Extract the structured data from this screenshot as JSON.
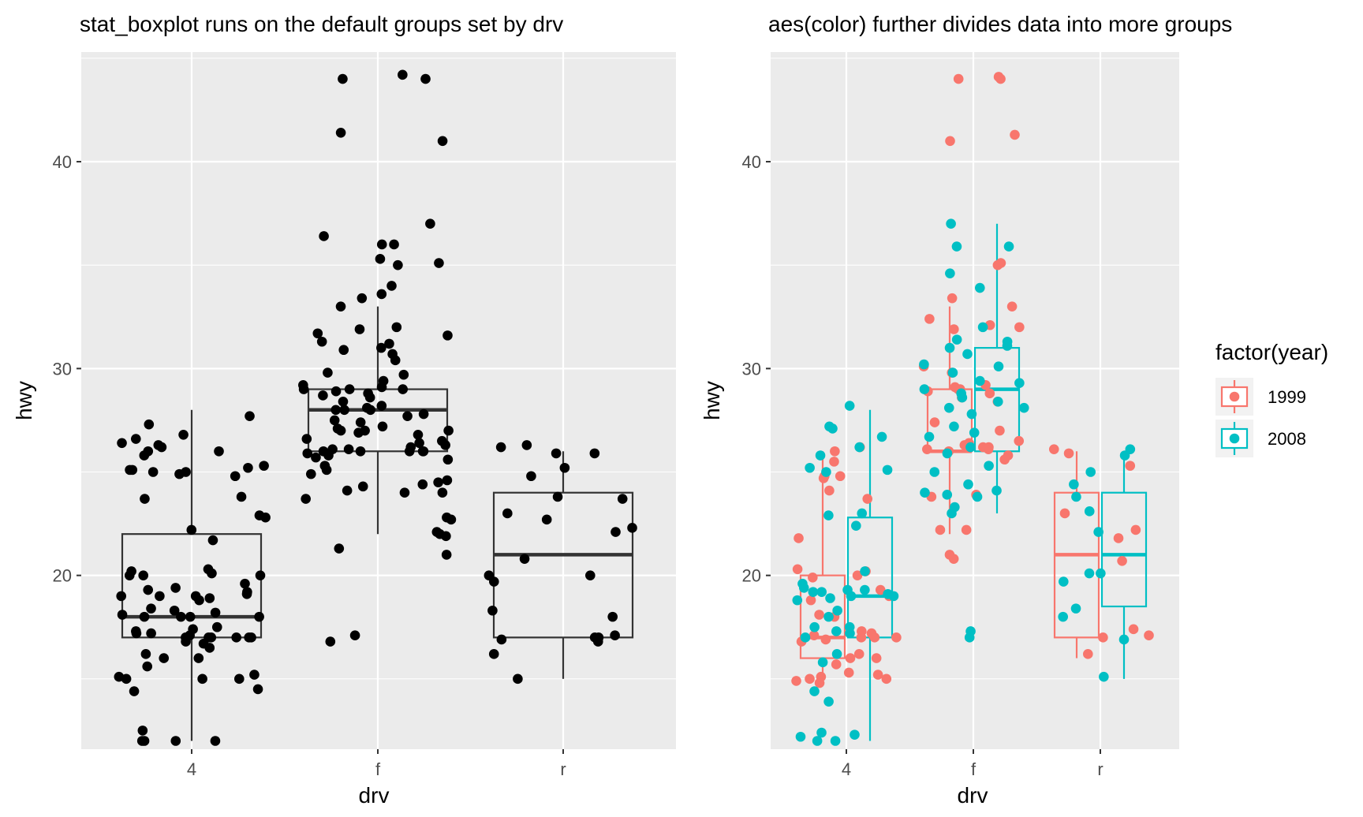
{
  "chart_data": [
    {
      "type": "boxplot",
      "title": "stat_boxplot runs on the default groups set by drv",
      "xlabel": "drv",
      "ylabel": "hwy",
      "categories": [
        "4",
        "f",
        "r"
      ],
      "yticks": [
        20,
        30,
        40
      ],
      "ylim": [
        11,
        45
      ],
      "grid": true,
      "boxes": [
        {
          "category": "4",
          "min": 12,
          "q1": 17,
          "median": 18,
          "q3": 22,
          "max": 28
        },
        {
          "category": "f",
          "min": 22,
          "q1": 26,
          "median": 28,
          "q3": 29,
          "max": 33
        },
        {
          "category": "r",
          "min": 15,
          "q1": 17,
          "median": 21,
          "q3": 24,
          "max": 26
        }
      ],
      "points": {
        "4": [
          12,
          12,
          12,
          12,
          12.5,
          14.4,
          14.5,
          15,
          15,
          15,
          15.1,
          15.2,
          15.6,
          16,
          16,
          16.2,
          16.5,
          16.7,
          16.8,
          17,
          17,
          17,
          17,
          17,
          17,
          17.1,
          17.2,
          17.2,
          17.3,
          17.4,
          17.5,
          18,
          18,
          18,
          18,
          18.1,
          18.2,
          18.3,
          18.4,
          18.8,
          18.9,
          19,
          19,
          19,
          19.1,
          19.2,
          19.3,
          19.4,
          19.6,
          20,
          20,
          20,
          20.1,
          20.2,
          20.3,
          21.7,
          22.2,
          22.8,
          22.9,
          23.7,
          23.8,
          24.8,
          24.9,
          25,
          25,
          25.1,
          25.1,
          25.2,
          25.3,
          25.8,
          26,
          26,
          26.2,
          26.3,
          26.4,
          26.6,
          26.8,
          27.3,
          27.7
        ],
        "f": [
          16.8,
          17.1,
          21,
          21.3,
          21.9,
          22,
          22.1,
          22.7,
          22.8,
          23.7,
          24,
          24,
          24.1,
          24.3,
          24.4,
          24.5,
          24.6,
          24.9,
          25.1,
          25.3,
          25.6,
          25.7,
          25.8,
          25.9,
          26,
          26,
          26,
          26,
          26,
          26.1,
          26.1,
          26.2,
          26.3,
          26.4,
          26.5,
          26.6,
          26.8,
          26.9,
          27,
          27,
          27,
          27.1,
          27.2,
          27.4,
          27.5,
          27.7,
          27.8,
          28,
          28,
          28,
          28.1,
          28.2,
          28.4,
          28.6,
          28.7,
          28.8,
          28.9,
          29,
          29,
          29,
          29.1,
          29.2,
          29.4,
          29.7,
          29.8,
          30.4,
          30.7,
          30.9,
          31,
          31.2,
          31.3,
          31.6,
          31.7,
          31.9,
          32,
          33,
          33.4,
          33.6,
          34,
          35,
          35.1,
          35.3,
          36,
          36,
          36.4,
          37,
          41,
          41.4,
          44,
          44,
          44.2
        ],
        "r": [
          15,
          16.2,
          16.8,
          16.9,
          17,
          17,
          17.1,
          18,
          18.3,
          19.7,
          20,
          20,
          20.8,
          22.1,
          22.3,
          22.7,
          23,
          23.7,
          23.8,
          24.8,
          25.2,
          25.9,
          25.9,
          26.2,
          26.3
        ]
      }
    },
    {
      "type": "boxplot",
      "title": "aes(color) further divides data into more groups",
      "xlabel": "drv",
      "ylabel": "hwy",
      "categories": [
        "4",
        "f",
        "r"
      ],
      "yticks": [
        20,
        30,
        40
      ],
      "ylim": [
        11,
        45
      ],
      "grid": true,
      "legend": {
        "title": "factor(year)",
        "position": "right",
        "labels": [
          "1999",
          "2008"
        ]
      },
      "series": [
        {
          "name": "1999",
          "color": "#F8766D",
          "boxes": [
            {
              "category": "4",
              "min": 15,
              "q1": 16,
              "median": 17,
              "q3": 20,
              "max": 26
            },
            {
              "category": "f",
              "min": 22,
              "q1": 26,
              "median": 26,
              "q3": 29,
              "max": 33
            },
            {
              "category": "r",
              "min": 16,
              "q1": 17,
              "median": 21,
              "q3": 24,
              "max": 26
            }
          ],
          "points": {
            "4": [
              14.8,
              14.9,
              15,
              15,
              15.1,
              15.2,
              15.3,
              15.7,
              16,
              16,
              16.2,
              16.8,
              16.9,
              17,
              17,
              17,
              17.1,
              17.2,
              17.3,
              18,
              18.1,
              18.8,
              19,
              19.3,
              19.9,
              20,
              20.2,
              20.3,
              21.8,
              23.7,
              24.1,
              24.7,
              24.8,
              24.8,
              25.5,
              26,
              26.2
            ],
            "f": [
              20.8,
              21,
              22.2,
              22.2,
              23.8,
              23.9,
              25.6,
              25.8,
              26,
              26.1,
              26.1,
              26.2,
              26.2,
              26.3,
              26.4,
              26.5,
              27,
              27.4,
              28.4,
              28.6,
              28.8,
              28.9,
              29,
              29,
              29.1,
              29.2,
              29.8,
              30.1,
              31.9,
              32,
              32.1,
              32.4,
              33,
              33.4,
              35,
              35.1,
              41,
              41.3,
              44,
              44,
              44.1
            ],
            "r": [
              16.2,
              17,
              17.1,
              17.4,
              20.7,
              21.8,
              22.2,
              23,
              25.3,
              25.9,
              26.1
            ]
          }
        },
        {
          "name": "2008",
          "color": "#00BFC4",
          "boxes": [
            {
              "category": "4",
              "min": 12,
              "q1": 17,
              "median": 19,
              "q3": 22.8,
              "max": 28
            },
            {
              "category": "f",
              "min": 23,
              "q1": 26,
              "median": 29,
              "q3": 31,
              "max": 37
            },
            {
              "category": "r",
              "min": 15,
              "q1": 18.5,
              "median": 21,
              "q3": 24,
              "max": 26
            }
          ],
          "points": {
            "4": [
              12,
              12,
              12.2,
              12.3,
              12.4,
              13.9,
              14.4,
              15.8,
              16.2,
              17,
              17.2,
              17.3,
              17.5,
              17.5,
              18,
              18.3,
              18.8,
              18.9,
              19,
              19,
              19.1,
              19.2,
              19.2,
              19.3,
              19.3,
              19.4,
              19.6,
              20.2,
              22.4,
              22.9,
              23,
              25,
              25.1,
              25.2,
              25.8,
              26.2,
              26.7,
              27.1,
              27.2,
              28.2
            ],
            "f": [
              17,
              17.3,
              23,
              23.3,
              23.8,
              23.9,
              24,
              24.1,
              24.4,
              25,
              25.3,
              25.9,
              26.2,
              26.7,
              26.9,
              27.2,
              27.8,
              28.1,
              28.1,
              28.4,
              28.6,
              28.8,
              29,
              29.3,
              29.4,
              29.8,
              30.1,
              30.2,
              30.7,
              31,
              31.1,
              31.3,
              31.4,
              32,
              33.9,
              34.6,
              35.9,
              35.9,
              37
            ],
            "r": [
              15.1,
              16.9,
              18,
              18.4,
              19.7,
              20.1,
              20.1,
              22.1,
              23.1,
              23.8,
              24.4,
              25,
              25.8,
              26.1
            ]
          }
        }
      ]
    }
  ]
}
